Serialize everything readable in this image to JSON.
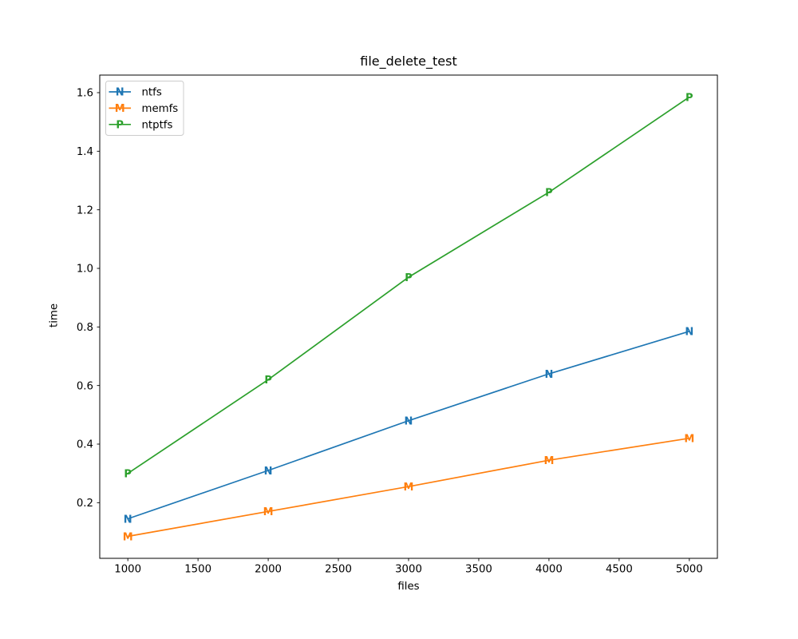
{
  "figure": {
    "background": "#ffffff"
  },
  "chart_data": {
    "type": "line",
    "title": "file_delete_test",
    "xlabel": "files",
    "ylabel": "time",
    "x": [
      1000,
      2000,
      3000,
      4000,
      5000
    ],
    "series": [
      {
        "name": "ntfs",
        "marker": "N",
        "color": "#1f77b4",
        "values": [
          0.145,
          0.31,
          0.48,
          0.64,
          0.785
        ]
      },
      {
        "name": "memfs",
        "marker": "M",
        "color": "#ff7f0e",
        "values": [
          0.085,
          0.17,
          0.255,
          0.345,
          0.42
        ]
      },
      {
        "name": "ntptfs",
        "marker": "P",
        "color": "#2ca02c",
        "values": [
          0.3,
          0.62,
          0.97,
          1.26,
          1.585
        ]
      }
    ],
    "xticks": [
      1000,
      1500,
      2000,
      2500,
      3000,
      3500,
      4000,
      4500,
      5000
    ],
    "yticks": [
      0.2,
      0.4,
      0.6,
      0.8,
      1.0,
      1.2,
      1.4,
      1.6
    ],
    "xlim": [
      800,
      5200
    ],
    "ylim": [
      0.01,
      1.66
    ],
    "grid": false,
    "legend": {
      "position": "upper left"
    },
    "axis_color": "#000000",
    "tick_label_color": "#000000",
    "legend_border_color": "#cccccc",
    "legend_background": "#ffffff"
  }
}
